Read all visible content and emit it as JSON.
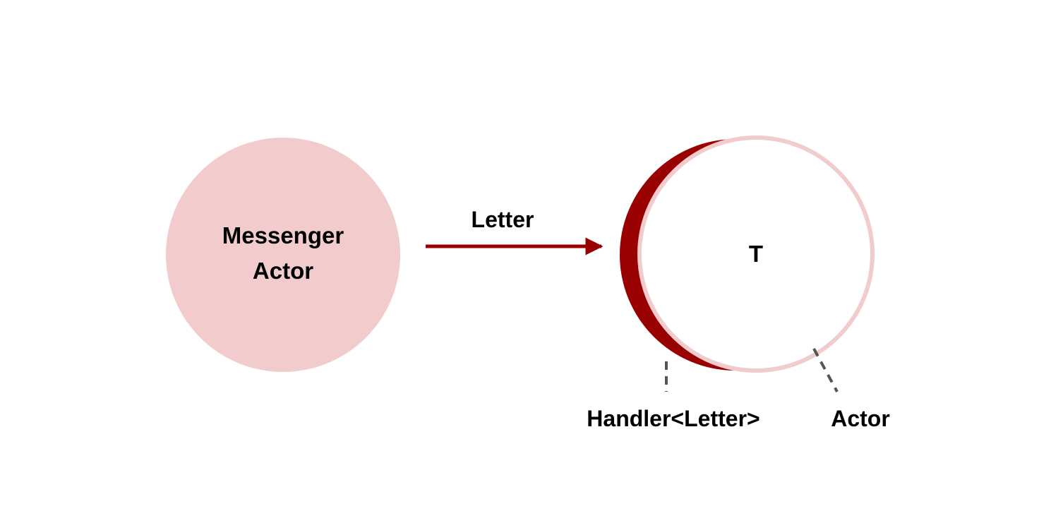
{
  "messenger_node": {
    "label_line1": "Messenger",
    "label_line2": "Actor"
  },
  "edge": {
    "label": "Letter"
  },
  "target_node": {
    "label": "T"
  },
  "callouts": {
    "handler_label": "Handler<Letter>",
    "actor_label": "Actor"
  },
  "colors": {
    "messenger_fill": "#f2cbcc",
    "arrow": "#990000",
    "handler_crescent": "#990000",
    "actor_ring": "#f2cbcc",
    "callout_line": "#555555",
    "text": "#000000"
  }
}
